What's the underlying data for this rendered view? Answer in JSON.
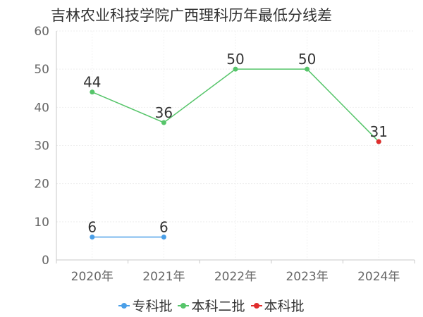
{
  "chart_data": {
    "type": "line",
    "title": "吉林农业科技学院广西理科历年最低分线差",
    "categories": [
      "2020年",
      "2021年",
      "2022年",
      "2023年",
      "2024年"
    ],
    "ylim": [
      0,
      60
    ],
    "yticks": [
      "0",
      "10",
      "20",
      "30",
      "40",
      "50",
      "60"
    ],
    "grid": true,
    "legend_position": "bottom",
    "series": [
      {
        "name": "专科批",
        "color": "#4a9fe8",
        "values": [
          6,
          6,
          null,
          null,
          null
        ]
      },
      {
        "name": "本科二批",
        "color": "#56c56a",
        "values": [
          44,
          36,
          50,
          50,
          31
        ]
      },
      {
        "name": "本科批",
        "color": "#e02d2d",
        "values": [
          null,
          null,
          null,
          null,
          31
        ]
      }
    ]
  }
}
